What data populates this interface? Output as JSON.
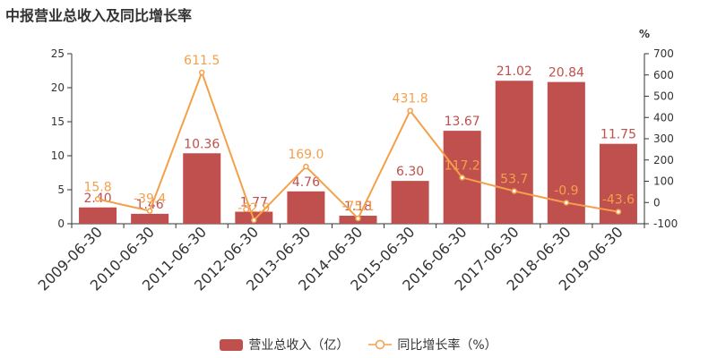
{
  "chart_data": {
    "type": "bar+line",
    "title": "中报营业总收入及同比增长率",
    "categories": [
      "2009-06-30",
      "2010-06-30",
      "2011-06-30",
      "2012-06-30",
      "2013-06-30",
      "2014-06-30",
      "2015-06-30",
      "2016-06-30",
      "2017-06-30",
      "2018-06-30",
      "2019-06-30"
    ],
    "series": [
      {
        "name": "营业总收入（亿）",
        "type": "bar",
        "axis": "left",
        "color": "#c0504d",
        "label_color": "#c0504d",
        "values": [
          2.4,
          1.46,
          10.36,
          1.77,
          4.76,
          1.18,
          6.3,
          13.67,
          21.02,
          20.84,
          11.75
        ],
        "labels": [
          "2.40",
          "1.46",
          "10.36",
          "1.77",
          "4.76",
          "1.18",
          "6.30",
          "13.67",
          "21.02",
          "20.84",
          "11.75"
        ]
      },
      {
        "name": "同比增长率（%）",
        "type": "line",
        "axis": "right",
        "color": "#f4a04a",
        "label_color": "#f4a04a",
        "values": [
          15.8,
          -39.4,
          611.5,
          -82.9,
          169.0,
          -75.1,
          431.8,
          117.2,
          53.7,
          -0.9,
          -43.6
        ],
        "labels": [
          "15.8",
          "-39.4",
          "611.5",
          "-82.9",
          "169.0",
          "-75.1",
          "431.8",
          "117.2",
          "53.7",
          "-0.9",
          "-43.6"
        ]
      }
    ],
    "left_axis": {
      "min": 0,
      "max": 25,
      "ticks": [
        0,
        5,
        10,
        15,
        20,
        25
      ]
    },
    "right_axis": {
      "min": -100,
      "max": 700,
      "ticks": [
        -100,
        0,
        100,
        200,
        300,
        400,
        500,
        600,
        700
      ],
      "unit_label": "%"
    },
    "grid": false,
    "legend_position": "bottom-center"
  }
}
